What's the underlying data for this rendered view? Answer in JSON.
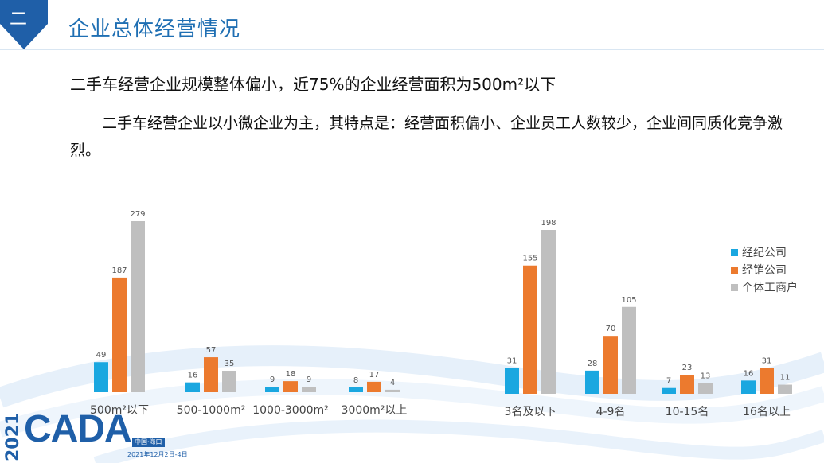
{
  "header": {
    "section_number": "二",
    "section_title": "企业总体经营情况"
  },
  "headline": "二手车经营企业规模整体偏小，近75%的企业经营面积为500m²以下",
  "paragraph": "二手车经营企业以小微企业为主，其特点是：经营面积偏小、企业员工人数较少，企业间同质化竞争激烈。",
  "colors": {
    "brand_blue": "#1f6fb3",
    "badge": "#1f5fa8"
  },
  "logo": {
    "year": "2021",
    "name": "CADA",
    "location": "中国·海口",
    "date": "2021年12月2日-4日"
  },
  "chart_data": [
    {
      "type": "bar",
      "categories": [
        "500m²以下",
        "500-1000m²",
        "1000-3000m²",
        "3000m²以上"
      ],
      "series": [
        {
          "name": "经纪公司",
          "color": "#1aa7e0",
          "values": [
            49,
            16,
            9,
            8
          ]
        },
        {
          "name": "经销公司",
          "color": "#ec7a2e",
          "values": [
            187,
            57,
            18,
            17
          ]
        },
        {
          "name": "个体工商户",
          "color": "#bfbfbf",
          "values": [
            279,
            35,
            9,
            4
          ]
        }
      ],
      "ylim": [
        0,
        279
      ],
      "grid": false,
      "legend": "none"
    },
    {
      "type": "bar",
      "categories": [
        "3名及以下",
        "4-9名",
        "10-15名",
        "16名以上"
      ],
      "series": [
        {
          "name": "经纪公司",
          "color": "#1aa7e0",
          "values": [
            31,
            28,
            7,
            16
          ]
        },
        {
          "name": "经销公司",
          "color": "#ec7a2e",
          "values": [
            155,
            70,
            23,
            31
          ]
        },
        {
          "name": "个体工商户",
          "color": "#bfbfbf",
          "values": [
            198,
            105,
            13,
            11
          ]
        }
      ],
      "ylim": [
        0,
        198
      ],
      "grid": false,
      "legend": "right"
    }
  ]
}
